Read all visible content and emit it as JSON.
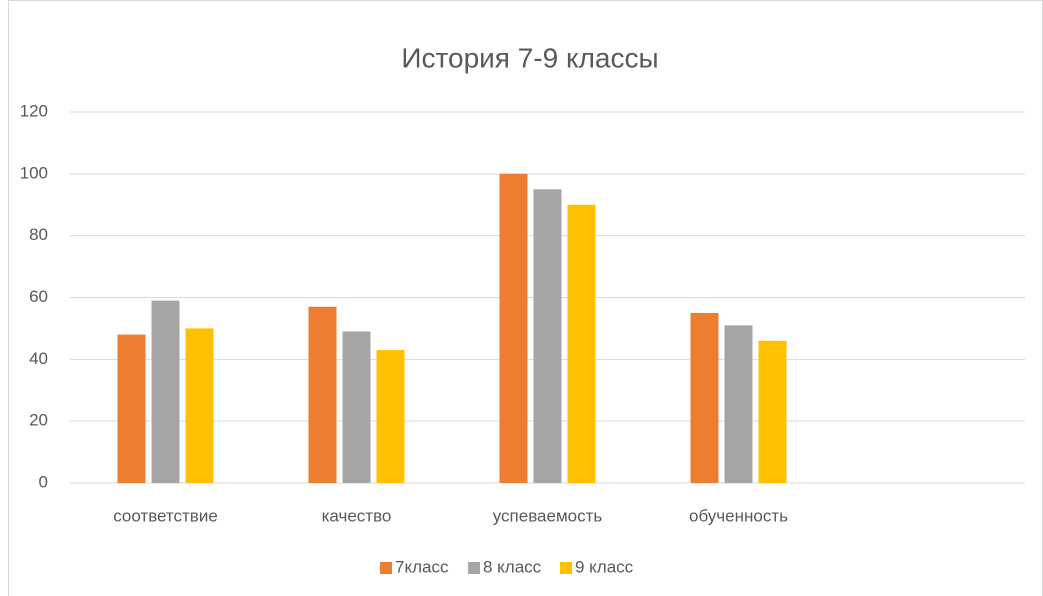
{
  "chart_data": {
    "type": "bar",
    "title": "История 7-9 классы",
    "categories": [
      "соответствие",
      "качество",
      "успеваемость",
      "обученность",
      null
    ],
    "series": [
      {
        "name": "7класс",
        "color": "#ed7d31",
        "values": [
          48,
          57,
          100,
          55,
          null
        ]
      },
      {
        "name": "8 класс",
        "color": "#a5a5a5",
        "values": [
          59,
          49,
          95,
          51,
          null
        ]
      },
      {
        "name": "9 класс",
        "color": "#ffc000",
        "values": [
          50,
          43,
          90,
          46,
          null
        ]
      }
    ],
    "ylim": [
      0,
      120
    ],
    "yticks": [
      0,
      20,
      40,
      60,
      80,
      100,
      120
    ],
    "grid": true,
    "legend": "bottom"
  }
}
